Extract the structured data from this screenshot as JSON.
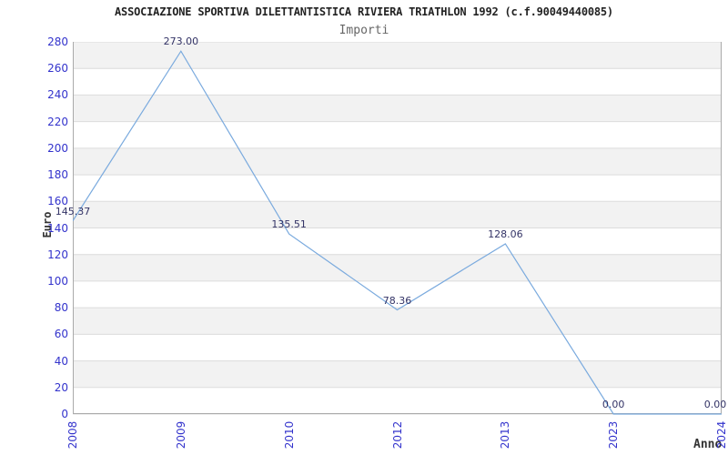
{
  "chart_data": {
    "type": "line",
    "title": "ASSOCIAZIONE SPORTIVA DILETTANTISTICA RIVIERA TRIATHLON 1992 (c.f.90049440085)",
    "subtitle": "Importi",
    "xlabel": "Anno",
    "ylabel": "Euro",
    "categories": [
      "2008",
      "2009",
      "2010",
      "2012",
      "2013",
      "2023",
      "2024"
    ],
    "values": [
      145.37,
      273.0,
      135.51,
      78.36,
      128.06,
      0.0,
      0.0
    ],
    "value_labels": [
      "145.37",
      "273.00",
      "135.51",
      "78.36",
      "128.06",
      "0.00",
      "0.00"
    ],
    "ylim": [
      0,
      280
    ],
    "ytick_step": 20,
    "x_spacing": "categorical-even",
    "grid": "horizontal",
    "banded_background": true,
    "legend": "none",
    "colors": {
      "line": "#7aaade",
      "band": "#f2f2f2",
      "gridline": "#dcdcdc",
      "axis_border": "#aaaaaa",
      "tick_label": "#3333cc",
      "data_label": "#333366",
      "title": "#222222",
      "subtitle": "#666666",
      "axis_title": "#333333",
      "background": "#ffffff"
    }
  }
}
